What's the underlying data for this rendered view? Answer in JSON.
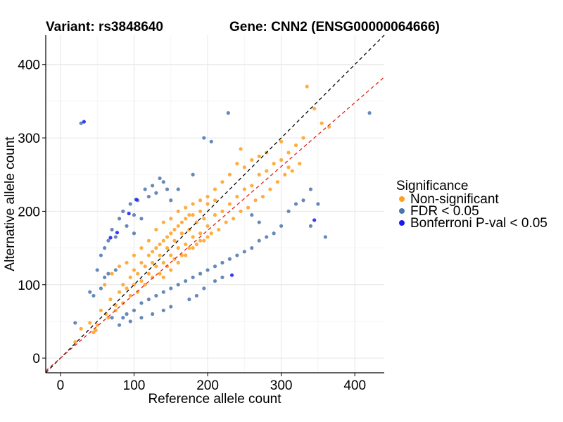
{
  "chart_data": {
    "type": "scatter",
    "titles": {
      "variant": "Variant: rs3848640",
      "gene": "Gene: CNN2 (ENSG00000064666)"
    },
    "xlabel": "Reference allele count",
    "ylabel": "Alternative allele count",
    "xlim": [
      -20,
      440
    ],
    "ylim": [
      -20,
      440
    ],
    "xticks": [
      0,
      100,
      200,
      300,
      400
    ],
    "yticks": [
      0,
      100,
      200,
      300,
      400
    ],
    "x_tick_labels": [
      "0",
      "100",
      "200",
      "300",
      "400"
    ],
    "y_tick_labels": [
      "0",
      "100",
      "200",
      "300",
      "400"
    ],
    "grid": true,
    "reference_lines": [
      {
        "name": "identity",
        "slope": 1.0,
        "intercept": 0,
        "color": "#000000",
        "dash": "dashed"
      },
      {
        "name": "fit",
        "slope": 0.87,
        "intercept": 0,
        "color": "#e0201b",
        "dash": "dashed"
      }
    ],
    "legend": {
      "title": "Significance",
      "position": "right",
      "entries": [
        "Non-significant",
        "FDR < 0.05",
        "Bonferroni P-val < 0.05"
      ]
    },
    "series": [
      {
        "name": "Non-significant",
        "color": "#ff9f1c",
        "points": [
          [
            20,
            22
          ],
          [
            28,
            40
          ],
          [
            40,
            48
          ],
          [
            48,
            38
          ],
          [
            55,
            65
          ],
          [
            62,
            60
          ],
          [
            68,
            80
          ],
          [
            75,
            72
          ],
          [
            80,
            90
          ],
          [
            85,
            100
          ],
          [
            90,
            95
          ],
          [
            95,
            110
          ],
          [
            100,
            100
          ],
          [
            105,
            115
          ],
          [
            110,
            105
          ],
          [
            115,
            125
          ],
          [
            120,
            115
          ],
          [
            125,
            130
          ],
          [
            130,
            125
          ],
          [
            135,
            140
          ],
          [
            140,
            130
          ],
          [
            145,
            150
          ],
          [
            150,
            140
          ],
          [
            155,
            160
          ],
          [
            160,
            150
          ],
          [
            165,
            170
          ],
          [
            170,
            155
          ],
          [
            175,
            175
          ],
          [
            180,
            165
          ],
          [
            185,
            185
          ],
          [
            190,
            170
          ],
          [
            195,
            190
          ],
          [
            200,
            180
          ],
          [
            210,
            195
          ],
          [
            220,
            200
          ],
          [
            230,
            210
          ],
          [
            240,
            220
          ],
          [
            250,
            230
          ],
          [
            260,
            235
          ],
          [
            270,
            250
          ],
          [
            280,
            255
          ],
          [
            290,
            265
          ],
          [
            300,
            270
          ],
          [
            310,
            280
          ],
          [
            320,
            290
          ],
          [
            330,
            300
          ],
          [
            335,
            370
          ],
          [
            345,
            340
          ],
          [
            355,
            320
          ],
          [
            365,
            315
          ],
          [
            110,
            150
          ],
          [
            120,
            160
          ],
          [
            130,
            175
          ],
          [
            140,
            185
          ],
          [
            150,
            190
          ],
          [
            160,
            200
          ],
          [
            170,
            205
          ],
          [
            180,
            210
          ],
          [
            190,
            215
          ],
          [
            200,
            220
          ],
          [
            100,
            140
          ],
          [
            90,
            130
          ],
          [
            80,
            125
          ],
          [
            70,
            115
          ],
          [
            60,
            100
          ],
          [
            95,
            85
          ],
          [
            105,
            90
          ],
          [
            115,
            100
          ],
          [
            125,
            110
          ],
          [
            135,
            115
          ],
          [
            145,
            125
          ],
          [
            155,
            135
          ],
          [
            165,
            140
          ],
          [
            175,
            150
          ],
          [
            185,
            155
          ],
          [
            195,
            160
          ],
          [
            205,
            170
          ],
          [
            215,
            175
          ],
          [
            225,
            185
          ],
          [
            235,
            190
          ],
          [
            245,
            200
          ],
          [
            255,
            205
          ],
          [
            265,
            215
          ],
          [
            275,
            220
          ],
          [
            285,
            230
          ],
          [
            295,
            240
          ],
          [
            305,
            250
          ],
          [
            315,
            255
          ],
          [
            325,
            265
          ],
          [
            150,
            170
          ],
          [
            160,
            180
          ],
          [
            170,
            190
          ],
          [
            180,
            195
          ],
          [
            190,
            200
          ],
          [
            140,
            160
          ],
          [
            130,
            150
          ],
          [
            120,
            140
          ],
          [
            110,
            130
          ],
          [
            100,
            120
          ],
          [
            245,
            285
          ],
          [
            300,
            295
          ],
          [
            310,
            260
          ],
          [
            230,
            250
          ],
          [
            240,
            265
          ],
          [
            250,
            260
          ],
          [
            260,
            270
          ],
          [
            270,
            275
          ],
          [
            280,
            280
          ],
          [
            140,
            110
          ],
          [
            150,
            120
          ],
          [
            160,
            130
          ],
          [
            170,
            140
          ],
          [
            180,
            150
          ],
          [
            190,
            160
          ],
          [
            200,
            165
          ],
          [
            85,
            75
          ],
          [
            75,
            65
          ],
          [
            65,
            55
          ],
          [
            50,
            45
          ],
          [
            45,
            35
          ],
          [
            125,
            145
          ],
          [
            135,
            155
          ],
          [
            145,
            165
          ],
          [
            155,
            175
          ],
          [
            165,
            185
          ],
          [
            175,
            195
          ],
          [
            210,
            230
          ],
          [
            220,
            240
          ],
          [
            200,
            210
          ],
          [
            210,
            215
          ]
        ]
      },
      {
        "name": "FDR < 0.05",
        "color": "#4a76ab",
        "points": [
          [
            20,
            48
          ],
          [
            40,
            90
          ],
          [
            50,
            120
          ],
          [
            55,
            140
          ],
          [
            60,
            150
          ],
          [
            65,
            160
          ],
          [
            70,
            175
          ],
          [
            75,
            165
          ],
          [
            80,
            190
          ],
          [
            85,
            200
          ],
          [
            90,
            180
          ],
          [
            95,
            210
          ],
          [
            100,
            195
          ],
          [
            105,
            215
          ],
          [
            110,
            190
          ],
          [
            115,
            230
          ],
          [
            120,
            220
          ],
          [
            125,
            235
          ],
          [
            130,
            225
          ],
          [
            135,
            245
          ],
          [
            140,
            240
          ],
          [
            145,
            230
          ],
          [
            150,
            215
          ],
          [
            160,
            230
          ],
          [
            180,
            250
          ],
          [
            195,
            300
          ],
          [
            205,
            295
          ],
          [
            228,
            334
          ],
          [
            420,
            334
          ],
          [
            28,
            320
          ],
          [
            60,
            110
          ],
          [
            70,
            55
          ],
          [
            80,
            45
          ],
          [
            90,
            60
          ],
          [
            100,
            65
          ],
          [
            110,
            75
          ],
          [
            120,
            80
          ],
          [
            130,
            85
          ],
          [
            140,
            90
          ],
          [
            150,
            95
          ],
          [
            160,
            100
          ],
          [
            170,
            105
          ],
          [
            180,
            110
          ],
          [
            190,
            115
          ],
          [
            200,
            120
          ],
          [
            210,
            125
          ],
          [
            220,
            130
          ],
          [
            230,
            135
          ],
          [
            240,
            140
          ],
          [
            250,
            145
          ],
          [
            260,
            150
          ],
          [
            270,
            160
          ],
          [
            280,
            165
          ],
          [
            290,
            170
          ],
          [
            300,
            180
          ],
          [
            310,
            200
          ],
          [
            320,
            210
          ],
          [
            330,
            215
          ],
          [
            340,
            230
          ],
          [
            350,
            210
          ],
          [
            340,
            180
          ],
          [
            360,
            165
          ],
          [
            260,
            195
          ],
          [
            270,
            185
          ],
          [
            210,
            105
          ],
          [
            220,
            110
          ],
          [
            195,
            95
          ],
          [
            185,
            85
          ],
          [
            175,
            80
          ],
          [
            150,
            70
          ],
          [
            140,
            65
          ],
          [
            125,
            60
          ],
          [
            110,
            55
          ],
          [
            95,
            50
          ],
          [
            85,
            55
          ],
          [
            65,
            115
          ],
          [
            75,
            120
          ],
          [
            55,
            95
          ],
          [
            45,
            85
          ],
          [
            100,
            170
          ]
        ]
      },
      {
        "name": "Bonferroni P-val < 0.05",
        "color": "#1a1aef",
        "points": [
          [
            32,
            322
          ],
          [
            93,
            197
          ],
          [
            103,
            216
          ],
          [
            77,
            171
          ],
          [
            68,
            164
          ],
          [
            233,
            113
          ],
          [
            345,
            188
          ]
        ]
      }
    ]
  }
}
